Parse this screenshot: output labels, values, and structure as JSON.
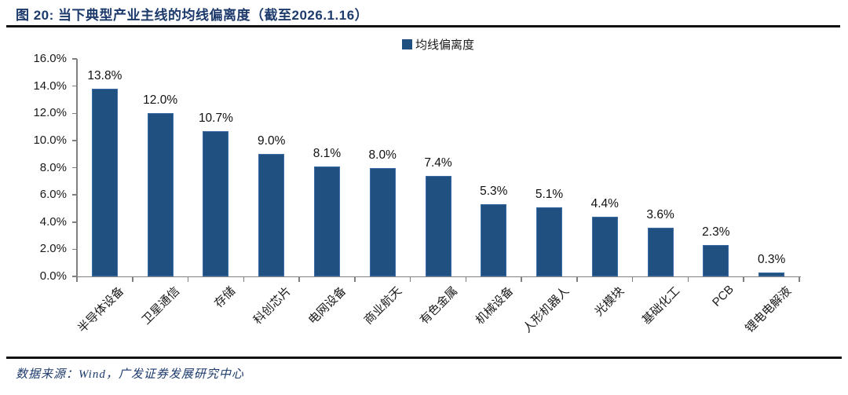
{
  "header": {
    "title": "图 20:  当下典型产业主线的均线偏离度（截至2026.1.16）"
  },
  "chart_data": {
    "type": "bar",
    "title": "图 20: 当下典型产业主线的均线偏离度（截至2026.1.16）",
    "legend_label": "均线偏离度",
    "legend_position": "top-center",
    "categories": [
      "半导体设备",
      "卫星通信",
      "存储",
      "科创芯片",
      "电网设备",
      "商业航天",
      "有色金属",
      "机械设备",
      "人形机器人",
      "光模块",
      "基础化工",
      "PCB",
      "锂电电解液"
    ],
    "values": [
      13.8,
      12.0,
      10.7,
      9.0,
      8.1,
      8.0,
      7.4,
      5.3,
      5.1,
      4.4,
      3.6,
      2.3,
      0.3
    ],
    "value_labels": [
      "13.8%",
      "12.0%",
      "10.7%",
      "9.0%",
      "8.1%",
      "8.0%",
      "7.4%",
      "5.3%",
      "5.1%",
      "4.4%",
      "3.6%",
      "2.3%",
      "0.3%"
    ],
    "ylabel": "",
    "xlabel": "",
    "ylim": [
      0,
      16
    ],
    "ytick_labels": [
      "16.0%",
      "14.0%",
      "12.0%",
      "10.0%",
      "8.0%",
      "6.0%",
      "4.0%",
      "2.0%",
      "0.0%"
    ],
    "grid": false,
    "bar_color": "#20507f"
  },
  "footer": {
    "source": "数据来源：Wind，广发证券发展研究中心"
  },
  "colors": {
    "bar": "#20507f",
    "title_text": "#1c3a6b",
    "axis_line": "#808080",
    "label_text": "#1a1a1a",
    "rule": "#111111"
  }
}
